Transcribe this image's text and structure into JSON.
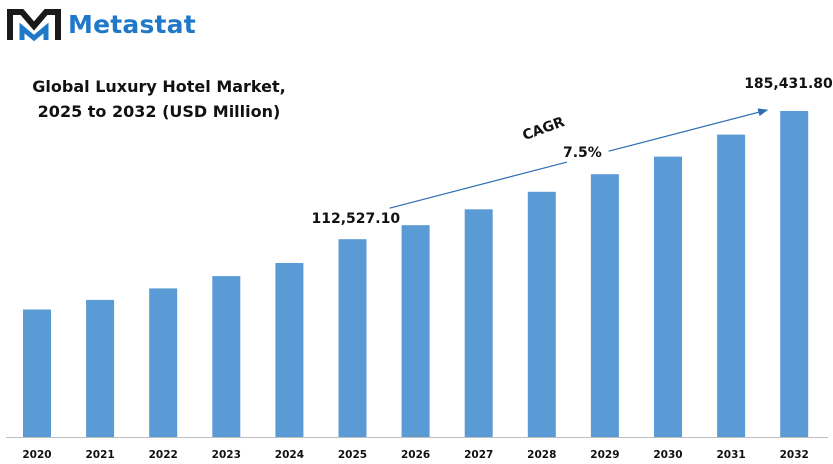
{
  "brand": {
    "name": "Metastat",
    "logo_icon": "metastat-m-logo",
    "color": "#1f78c8"
  },
  "title_line1": "Global Luxury Hotel Market,",
  "title_line2": "2025 to 2032 (USD Million)",
  "annotations": {
    "cagr_label": "CAGR",
    "cagr_value": "7.5%",
    "start_value": "112,527.10",
    "end_value": "185,431.80"
  },
  "chart_data": {
    "type": "bar",
    "title": "Global Luxury Hotel Market, 2025 to 2032 (USD Million)",
    "categories": [
      "2020",
      "2021",
      "2022",
      "2023",
      "2024",
      "2025",
      "2026",
      "2027",
      "2028",
      "2029",
      "2030",
      "2031",
      "2032"
    ],
    "values": [
      72500,
      78000,
      84500,
      91500,
      99000,
      112527.1,
      120500,
      129500,
      139500,
      149500,
      159500,
      172000,
      185431.8
    ],
    "xlabel": "",
    "ylabel": "",
    "ylim": [
      0,
      185431.8
    ],
    "grid": false,
    "legend": "none",
    "bar_color": "#5b9bd5"
  }
}
